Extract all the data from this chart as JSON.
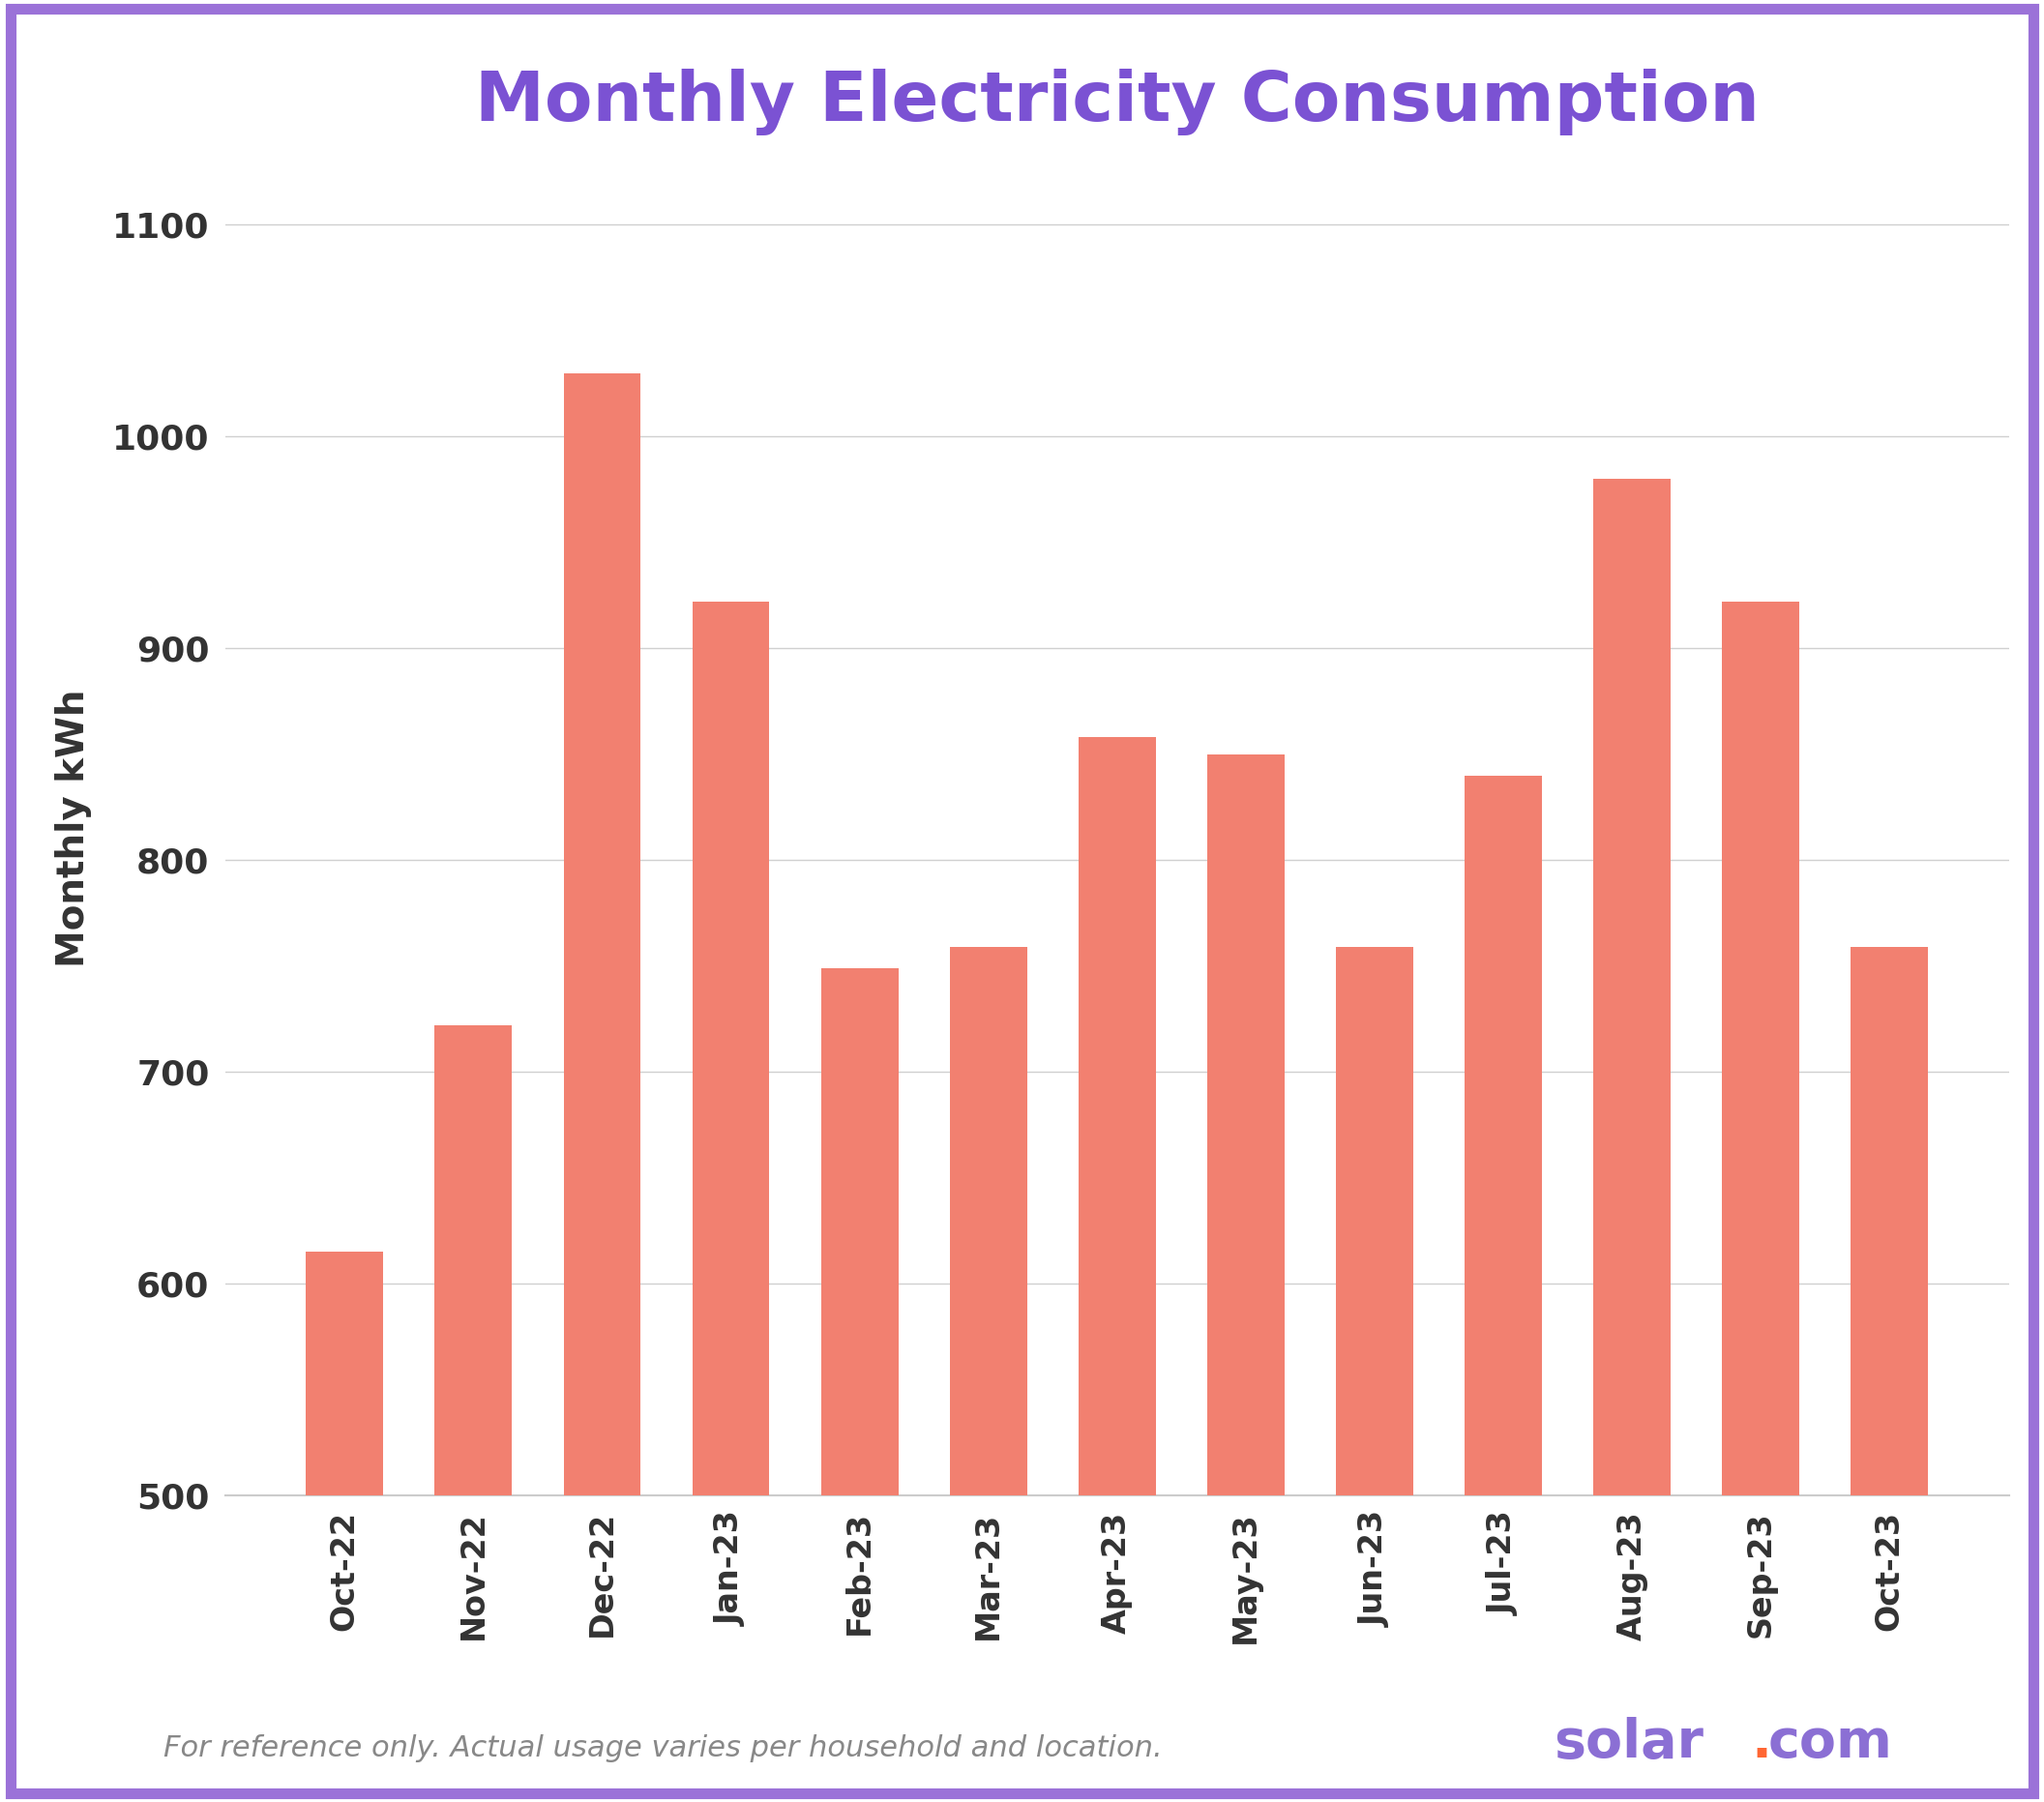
{
  "title": "Monthly Electricity Consumption",
  "title_color": "#7B52D3",
  "title_fontsize": 52,
  "ylabel": "Monthly kWh",
  "ylabel_fontsize": 28,
  "categories": [
    "Oct-22",
    "Nov-22",
    "Dec-22",
    "Jan-23",
    "Feb-23",
    "Mar-23",
    "Apr-23",
    "May-23",
    "Jun-23",
    "Jul-23",
    "Aug-23",
    "Sep-23",
    "Oct-23"
  ],
  "values": [
    615,
    722,
    1030,
    922,
    749,
    759,
    858,
    850,
    759,
    840,
    980,
    922,
    759
  ],
  "bar_color": "#F28070",
  "ylim": [
    500,
    1130
  ],
  "yticks": [
    500,
    600,
    700,
    800,
    900,
    1000,
    1100
  ],
  "background_color": "#ffffff",
  "border_color": "#9B72D8",
  "border_linewidth": 8,
  "grid_color": "#d0d0d0",
  "tick_fontsize": 26,
  "xtick_fontsize": 24,
  "footer_text": "For reference only. Actual usage varies per household and location.",
  "footer_color": "#888888",
  "footer_fontsize": 22,
  "solar_text_color": "#8B6FD4",
  "solar_dot_color": "#FF6633",
  "solar_fontsize": 40,
  "ylabel_color": "#333333",
  "ytick_color": "#333333",
  "xtick_color": "#333333",
  "spine_color": "#cccccc",
  "bar_width": 0.6
}
